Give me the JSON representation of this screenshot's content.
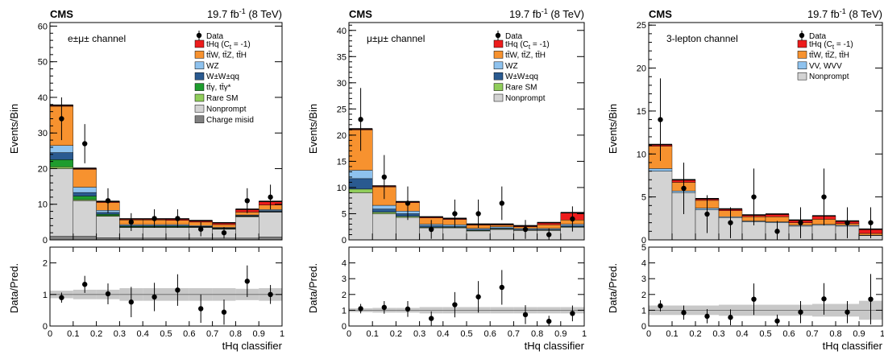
{
  "chart_data": [
    {
      "type": "stacked-histogram",
      "experiment": "CMS",
      "lumi_label": "19.7 fb",
      "lumi_exponent": "-1",
      "energy_label": " (8 TeV)",
      "channel": "e±μ± channel",
      "xlabel": "tHq classifier",
      "ylabel": "Events/Bin",
      "ratio_ylabel": "Data/Pred.",
      "xlim": [
        0,
        1
      ],
      "ylim": [
        0,
        61
      ],
      "ratio_ylim": [
        0,
        2.5
      ],
      "x_ticks": [
        "0",
        "0.1",
        "0.2",
        "0.3",
        "0.4",
        "0.5",
        "0.6",
        "0.7",
        "0.8",
        "0.9",
        "1"
      ],
      "y_ticks": [
        0,
        10,
        20,
        30,
        40,
        50,
        60
      ],
      "ratio_ticks": [
        0,
        1,
        2
      ],
      "bins": [
        0.0,
        0.1,
        0.2,
        0.3,
        0.4,
        0.5,
        0.6,
        0.7,
        0.8,
        0.9,
        1.0
      ],
      "series": [
        {
          "name": "Charge misid",
          "color": "#808080",
          "values": [
            1,
            1,
            0.6,
            0.5,
            0.5,
            0.5,
            0.5,
            0.5,
            0.5,
            0.8
          ]
        },
        {
          "name": "Nonprompt",
          "color": "#d3d3d3",
          "values": [
            19,
            10,
            6,
            3,
            3,
            3,
            3,
            2.5,
            6,
            7
          ]
        },
        {
          "name": "Rare SM",
          "color": "#90cd5b",
          "values": [
            0.5,
            0.3,
            0.2,
            0.1,
            0.1,
            0.1,
            0.1,
            0.1,
            0.1,
            0.1
          ]
        },
        {
          "name": "tt̄γ, tt̄γ*",
          "color": "#1e9c2d",
          "values": [
            2,
            1,
            0.4,
            0.2,
            0.2,
            0.2,
            0.1,
            0.1,
            0.1,
            0.1
          ]
        },
        {
          "name": "W±W±qq",
          "color": "#2a5a90",
          "values": [
            2,
            1,
            0.5,
            0.2,
            0.2,
            0.2,
            0.1,
            0.1,
            0.1,
            0.2
          ]
        },
        {
          "name": "WZ",
          "color": "#8ec2ee",
          "values": [
            2,
            1.5,
            0.6,
            0.3,
            0.3,
            0.3,
            0.2,
            0.2,
            0.2,
            0.3
          ]
        },
        {
          "name": "tt̄W, tt̄Z, tt̄H",
          "color": "#f7922f",
          "values": [
            11,
            5,
            2.2,
            1.3,
            1.3,
            1.2,
            1.0,
            0.8,
            0.8,
            1.3
          ]
        },
        {
          "name": "tHq (C",
          "sub": "t",
          "suffix": " = -1)",
          "color": "#ed1c1c",
          "values": [
            0.3,
            0.3,
            0.3,
            0.3,
            0.3,
            0.4,
            0.4,
            0.5,
            0.8,
            1.0
          ]
        }
      ],
      "data_name": "Data",
      "data": [
        34,
        27,
        11,
        5,
        6,
        6,
        3,
        2,
        11,
        12
      ],
      "data_err": [
        6,
        5.5,
        3.5,
        2.5,
        2.6,
        2.6,
        2,
        1.6,
        3.5,
        3.5
      ],
      "band_unc": [
        4,
        3,
        1.6,
        1.0,
        1.0,
        1.0,
        0.8,
        0.7,
        1.3,
        1.6
      ],
      "ratio": [
        0.9,
        1.32,
        1.02,
        0.76,
        0.92,
        1.14,
        0.55,
        0.44,
        1.42,
        1.0
      ],
      "ratio_err": [
        0.16,
        0.27,
        0.33,
        0.48,
        0.45,
        0.5,
        0.45,
        0.4,
        0.5,
        0.3
      ],
      "ratio_band": [
        0.12,
        0.15,
        0.15,
        0.2,
        0.2,
        0.2,
        0.2,
        0.2,
        0.18,
        0.2
      ]
    },
    {
      "type": "stacked-histogram",
      "experiment": "CMS",
      "lumi_label": "19.7 fb",
      "lumi_exponent": "-1",
      "energy_label": " (8 TeV)",
      "channel": "μ±μ± channel",
      "xlabel": "tHq classifier",
      "ylabel": "Events/Bin",
      "ratio_ylabel": "Data/Pred.",
      "xlim": [
        0,
        1
      ],
      "ylim": [
        0,
        41.5
      ],
      "ratio_ylim": [
        0,
        5
      ],
      "x_ticks": [
        "0",
        "0.1",
        "0.2",
        "0.3",
        "0.4",
        "0.5",
        "0.6",
        "0.7",
        "0.8",
        "0.9",
        "1"
      ],
      "y_ticks": [
        0,
        5,
        10,
        15,
        20,
        25,
        30,
        35,
        40
      ],
      "ratio_ticks": [
        0,
        1,
        2,
        3,
        4
      ],
      "bins": [
        0.0,
        0.1,
        0.2,
        0.3,
        0.4,
        0.5,
        0.6,
        0.7,
        0.8,
        0.9,
        1.0
      ],
      "series": [
        {
          "name": "Nonprompt",
          "color": "#d3d3d3",
          "values": [
            9,
            5,
            4.3,
            2.3,
            2.3,
            1.7,
            2.0,
            1.8,
            1.8,
            2.4
          ]
        },
        {
          "name": "Rare SM",
          "color": "#90cd5b",
          "values": [
            0.7,
            0.3,
            0.2,
            0.1,
            0.1,
            0.1,
            0.1,
            0.1,
            0.1,
            0.1
          ]
        },
        {
          "name": "W±W±qq",
          "color": "#2a5a90",
          "values": [
            2,
            0.6,
            0.5,
            0.3,
            0.2,
            0.2,
            0.2,
            0.1,
            0.1,
            0.2
          ]
        },
        {
          "name": "WZ",
          "color": "#8ec2ee",
          "values": [
            1.6,
            0.7,
            0.5,
            0.3,
            0.3,
            0.2,
            0.2,
            0.2,
            0.2,
            0.3
          ]
        },
        {
          "name": "tt̄W, tt̄Z, tt̄H",
          "color": "#f7922f",
          "values": [
            7.7,
            3.5,
            1.6,
            1.2,
            1.0,
            0.6,
            0.3,
            0.3,
            0.7,
            0.8
          ]
        },
        {
          "name": "tHq (C",
          "sub": "t",
          "suffix": " = -1)",
          "color": "#ed1c1c",
          "values": [
            0.2,
            0.2,
            0.2,
            0.2,
            0.2,
            0.2,
            0.2,
            0.2,
            0.4,
            1.4
          ]
        }
      ],
      "data_name": "Data",
      "data": [
        23,
        12,
        7,
        2,
        5,
        5,
        7,
        2,
        1,
        4
      ],
      "data_err": [
        6,
        4.2,
        3.2,
        1.8,
        2.7,
        2.7,
        3.2,
        1.8,
        1.2,
        2.4
      ],
      "band_unc": [
        2.4,
        1.3,
        0.9,
        0.5,
        0.5,
        0.5,
        0.5,
        0.4,
        0.5,
        0.6
      ],
      "ratio": [
        1.1,
        1.18,
        1.08,
        0.48,
        1.35,
        1.85,
        2.45,
        0.72,
        0.3,
        0.8
      ],
      "ratio_err": [
        0.3,
        0.4,
        0.5,
        0.45,
        0.8,
        1.0,
        1.1,
        0.6,
        0.35,
        0.5
      ],
      "ratio_band": [
        0.12,
        0.15,
        0.15,
        0.2,
        0.2,
        0.2,
        0.2,
        0.2,
        0.2,
        0.2
      ]
    },
    {
      "type": "stacked-histogram",
      "experiment": "CMS",
      "lumi_label": "19.7 fb",
      "lumi_exponent": "-1",
      "energy_label": " (8 TeV)",
      "channel": "3-lepton channel",
      "xlabel": "tHq classifier",
      "ylabel": "Events/Bin",
      "ratio_ylabel": "Data/Pred.",
      "xlim": [
        0,
        1
      ],
      "ylim": [
        0,
        25.3
      ],
      "ratio_ylim": [
        0,
        5
      ],
      "x_ticks": [
        "0",
        "0.1",
        "0.2",
        "0.3",
        "0.4",
        "0.5",
        "0.6",
        "0.7",
        "0.8",
        "0.9",
        "1"
      ],
      "y_ticks": [
        0,
        5,
        10,
        15,
        20,
        25
      ],
      "ratio_ticks": [
        0,
        1,
        2,
        3,
        4,
        5
      ],
      "bins": [
        0.0,
        0.1,
        0.2,
        0.3,
        0.4,
        0.5,
        0.6,
        0.7,
        0.8,
        0.9,
        1.0
      ],
      "series": [
        {
          "name": "Nonprompt",
          "color": "#d3d3d3",
          "values": [
            8,
            5.5,
            3.5,
            2.6,
            2.1,
            2.0,
            1.6,
            1.7,
            1.6,
            0.5
          ]
        },
        {
          "name": "VV, WVV",
          "color": "#8ec2ee",
          "values": [
            0.3,
            0.2,
            0.2,
            0.1,
            0.1,
            0.1,
            0.1,
            0.1,
            0.1,
            0.05
          ]
        },
        {
          "name": "tt̄W, tt̄Z, tt̄H",
          "color": "#f7922f",
          "values": [
            2.6,
            1.0,
            0.9,
            0.7,
            0.5,
            0.6,
            0.3,
            0.6,
            0.2,
            0.2
          ]
        },
        {
          "name": "tHq (C",
          "sub": "t",
          "suffix": " = -1)",
          "color": "#ed1c1c",
          "values": [
            0.2,
            0.3,
            0.2,
            0.2,
            0.2,
            0.3,
            0.3,
            0.4,
            0.3,
            0.5
          ]
        }
      ],
      "data_name": "Data",
      "data": [
        14,
        6,
        3,
        2,
        5,
        1,
        2,
        5,
        2,
        2
      ],
      "data_err": [
        4.8,
        3.0,
        2.2,
        1.8,
        3.3,
        1.2,
        1.8,
        3.3,
        1.8,
        1.8
      ],
      "band_unc": [
        3.0,
        1.8,
        1.2,
        1.0,
        0.8,
        0.8,
        0.7,
        0.8,
        0.7,
        0.4
      ],
      "ratio": [
        1.28,
        0.85,
        0.62,
        0.55,
        1.7,
        0.32,
        0.88,
        1.72,
        0.88,
        1.7
      ],
      "ratio_err": [
        0.35,
        0.45,
        0.45,
        0.5,
        1.0,
        0.4,
        0.7,
        1.0,
        0.7,
        1.6
      ],
      "ratio_band": [
        0.3,
        0.3,
        0.3,
        0.35,
        0.35,
        0.35,
        0.35,
        0.4,
        0.4,
        0.6
      ]
    }
  ]
}
